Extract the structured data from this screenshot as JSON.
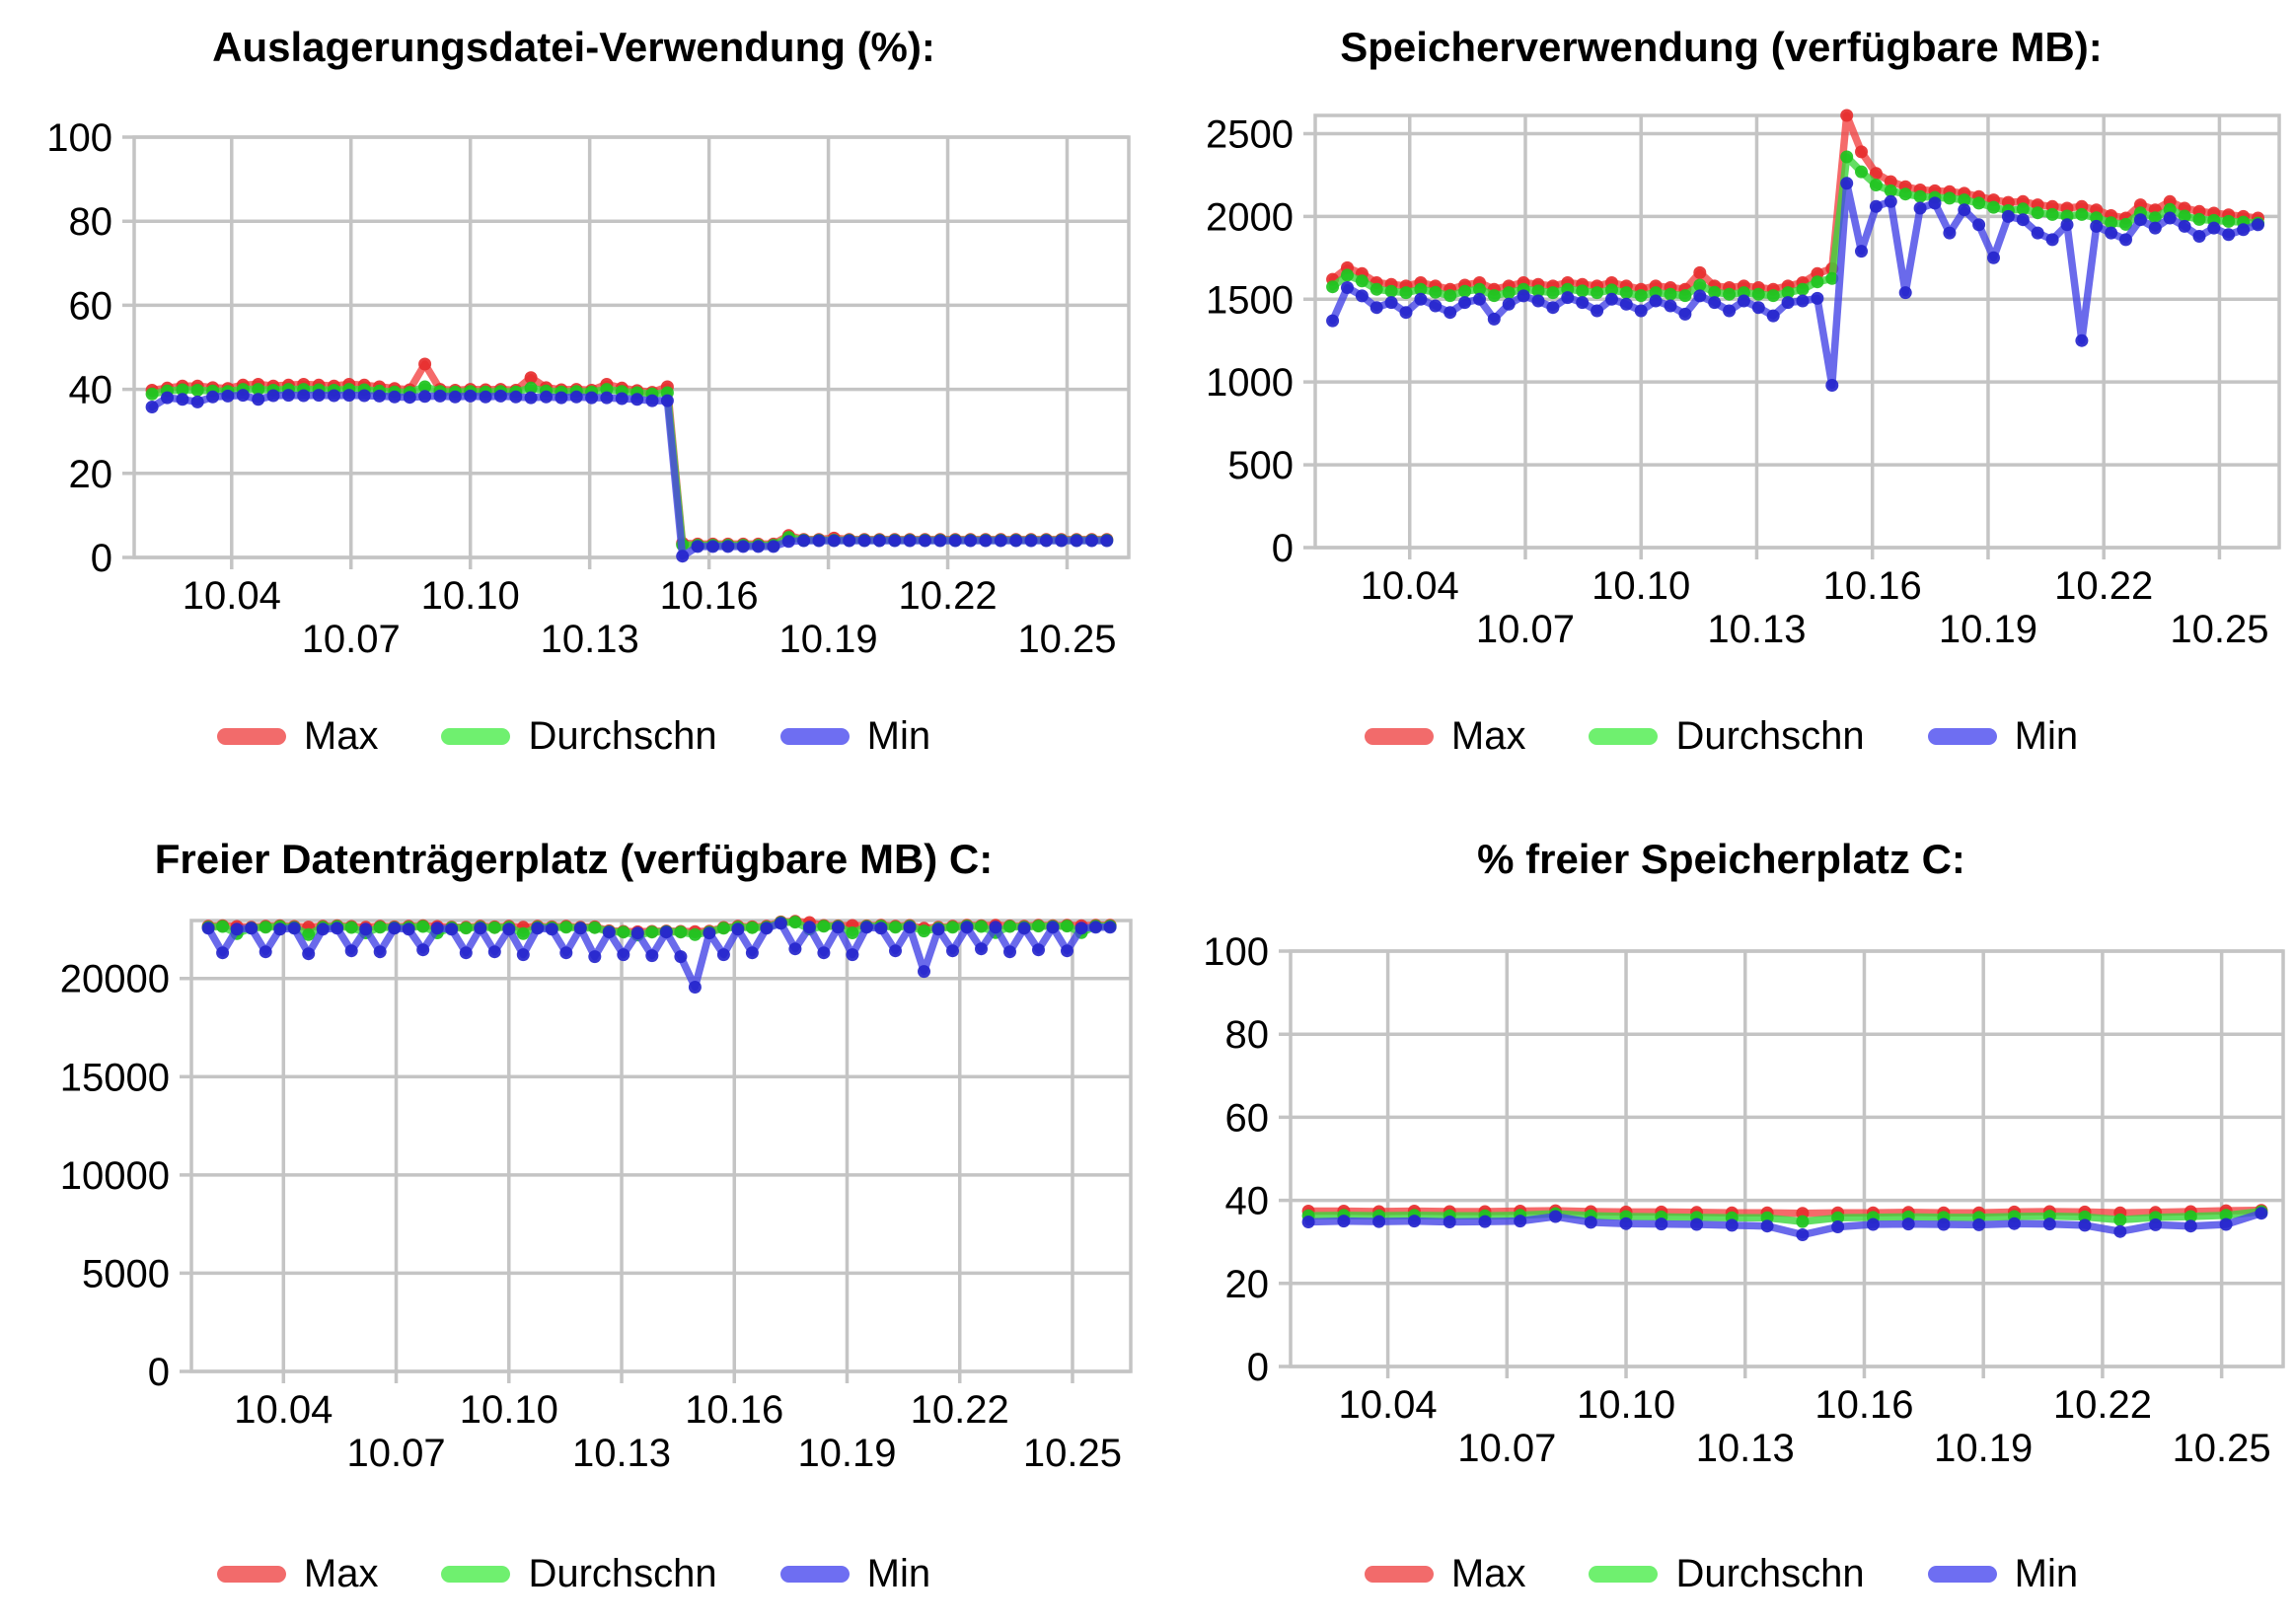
{
  "colors": {
    "max_line": "#F24545",
    "max_marker": "#E62E2E",
    "avg_line": "#3BD63B",
    "avg_marker": "#20C320",
    "min_line": "#4545E6",
    "min_marker": "#2525CC",
    "legend_max": "#F26B6B",
    "legend_avg": "#6FF06F",
    "legend_min": "#6E6EF2",
    "grid": "#C4C4C4",
    "text": "#000000",
    "background": "#FFFFFF"
  },
  "legend_labels": {
    "max": "Max",
    "avg": "Durchschn",
    "min": "Min"
  },
  "chart_data": [
    {
      "type": "line",
      "title": "Auslagerungsdatei-Verwendung (%):",
      "ylabel": "",
      "xlabel": "",
      "ylim": [
        0,
        100
      ],
      "y_ticks": [
        0,
        20,
        40,
        60,
        80,
        100
      ],
      "xlim": [
        10.0155,
        10.2655
      ],
      "x_start": 10.02,
      "x_end": 10.26,
      "x_ticks": [
        {
          "label": "10.04",
          "value": 10.04,
          "row": 1
        },
        {
          "label": "10.07",
          "value": 10.07,
          "row": 2
        },
        {
          "label": "10.10",
          "value": 10.1,
          "row": 1
        },
        {
          "label": "10.13",
          "value": 10.13,
          "row": 2
        },
        {
          "label": "10.16",
          "value": 10.16,
          "row": 1
        },
        {
          "label": "10.19",
          "value": 10.19,
          "row": 2
        },
        {
          "label": "10.22",
          "value": 10.22,
          "row": 1
        },
        {
          "label": "10.25",
          "value": 10.25,
          "row": 2
        }
      ],
      "grid": true,
      "legend_position": "bottom",
      "series": [
        {
          "name": "Max",
          "color_key": "max",
          "values": [
            39.8,
            40.3,
            40.8,
            40.8,
            40.4,
            40.2,
            41.0,
            41.2,
            40.8,
            41.0,
            41.2,
            41.0,
            40.8,
            41.2,
            41.0,
            40.6,
            40.2,
            39.9,
            46.0,
            40.0,
            39.8,
            40.0,
            39.9,
            40.0,
            39.8,
            42.8,
            40.4,
            39.9,
            40.0,
            39.8,
            41.2,
            40.3,
            39.7,
            39.3,
            40.6,
            3.4,
            3.2,
            3.2,
            3.2,
            3.2,
            3.2,
            3.2,
            5.2,
            4.3,
            4.3,
            4.6,
            4.3,
            4.3,
            4.3,
            4.3,
            4.3,
            4.3,
            4.3,
            4.3,
            4.3,
            4.3,
            4.3,
            4.3,
            4.3,
            4.3,
            4.3,
            4.3,
            4.3,
            4.3
          ]
        },
        {
          "name": "Durchschn",
          "color_key": "avg",
          "values": [
            38.9,
            39.6,
            39.9,
            39.8,
            39.6,
            39.5,
            40.0,
            40.0,
            39.8,
            40.0,
            40.0,
            39.9,
            39.8,
            40.0,
            39.9,
            39.6,
            39.4,
            39.3,
            40.6,
            39.5,
            39.4,
            39.5,
            39.4,
            39.5,
            39.4,
            40.3,
            39.6,
            39.4,
            39.5,
            39.4,
            40.0,
            39.5,
            39.2,
            38.9,
            39.2,
            3.0,
            2.9,
            2.9,
            2.9,
            2.9,
            2.9,
            2.9,
            4.8,
            4.1,
            4.1,
            4.1,
            4.1,
            4.1,
            4.1,
            4.1,
            4.1,
            4.1,
            4.1,
            4.1,
            4.1,
            4.1,
            4.1,
            4.1,
            4.1,
            4.1,
            4.1,
            4.1,
            4.1,
            4.1
          ]
        },
        {
          "name": "Min",
          "color_key": "min",
          "values": [
            35.8,
            38.0,
            37.6,
            37.0,
            38.2,
            38.4,
            38.6,
            37.6,
            38.5,
            38.6,
            38.5,
            38.6,
            38.5,
            38.6,
            38.5,
            38.4,
            38.2,
            38.1,
            38.3,
            38.4,
            38.2,
            38.4,
            38.2,
            38.4,
            38.2,
            38.0,
            38.2,
            38.0,
            38.2,
            38.0,
            38.0,
            37.8,
            37.6,
            37.3,
            37.3,
            0.3,
            2.6,
            2.6,
            2.6,
            2.6,
            2.6,
            2.6,
            3.8,
            4.0,
            4.0,
            4.0,
            4.0,
            4.0,
            4.0,
            4.0,
            4.0,
            4.0,
            4.0,
            4.0,
            4.0,
            4.0,
            4.0,
            4.0,
            4.0,
            4.0,
            4.0,
            4.0,
            4.0,
            4.0
          ]
        }
      ]
    },
    {
      "type": "line",
      "title": "Speicherverwendung (verfügbare MB):",
      "ylabel": "",
      "xlabel": "",
      "ylim": [
        0,
        2610
      ],
      "y_ticks": [
        0,
        500,
        1000,
        1500,
        2000,
        2500
      ],
      "xlim": [
        10.0155,
        10.2655
      ],
      "x_start": 10.02,
      "x_end": 10.26,
      "x_ticks": [
        {
          "label": "10.04",
          "value": 10.04,
          "row": 1
        },
        {
          "label": "10.07",
          "value": 10.07,
          "row": 2
        },
        {
          "label": "10.10",
          "value": 10.1,
          "row": 1
        },
        {
          "label": "10.13",
          "value": 10.13,
          "row": 2
        },
        {
          "label": "10.16",
          "value": 10.16,
          "row": 1
        },
        {
          "label": "10.19",
          "value": 10.19,
          "row": 2
        },
        {
          "label": "10.22",
          "value": 10.22,
          "row": 1
        },
        {
          "label": "10.25",
          "value": 10.25,
          "row": 2
        }
      ],
      "grid": true,
      "legend_position": "bottom",
      "series": [
        {
          "name": "Max",
          "color_key": "max",
          "values": [
            1620,
            1690,
            1655,
            1600,
            1590,
            1580,
            1600,
            1580,
            1560,
            1585,
            1600,
            1560,
            1580,
            1600,
            1590,
            1580,
            1600,
            1590,
            1580,
            1600,
            1580,
            1560,
            1580,
            1570,
            1560,
            1660,
            1580,
            1570,
            1580,
            1570,
            1560,
            1580,
            1600,
            1655,
            1685,
            2610,
            2390,
            2260,
            2210,
            2180,
            2160,
            2155,
            2150,
            2140,
            2120,
            2100,
            2085,
            2090,
            2070,
            2060,
            2050,
            2060,
            2040,
            2005,
            1990,
            2070,
            2040,
            2090,
            2050,
            2030,
            2020,
            2010,
            2000,
            1990
          ]
        },
        {
          "name": "Durchschn",
          "color_key": "avg",
          "values": [
            1575,
            1645,
            1610,
            1560,
            1548,
            1540,
            1560,
            1542,
            1522,
            1548,
            1560,
            1522,
            1540,
            1560,
            1550,
            1540,
            1560,
            1550,
            1540,
            1556,
            1540,
            1522,
            1540,
            1530,
            1522,
            1585,
            1542,
            1530,
            1540,
            1530,
            1522,
            1540,
            1560,
            1605,
            1625,
            2360,
            2270,
            2190,
            2155,
            2135,
            2120,
            2115,
            2110,
            2100,
            2080,
            2055,
            2035,
            2045,
            2022,
            2012,
            2002,
            2012,
            1992,
            1962,
            1952,
            2022,
            1992,
            2042,
            2002,
            1982,
            1976,
            1970,
            1966,
            1960
          ]
        },
        {
          "name": "Min",
          "color_key": "min",
          "values": [
            1370,
            1570,
            1520,
            1450,
            1480,
            1420,
            1500,
            1460,
            1420,
            1480,
            1500,
            1380,
            1470,
            1520,
            1490,
            1450,
            1510,
            1480,
            1430,
            1500,
            1470,
            1430,
            1490,
            1460,
            1410,
            1520,
            1480,
            1430,
            1490,
            1450,
            1400,
            1480,
            1490,
            1505,
            980,
            2200,
            1790,
            2060,
            2090,
            1540,
            2050,
            2080,
            1900,
            2040,
            1950,
            1750,
            2000,
            1980,
            1900,
            1860,
            1950,
            1250,
            1940,
            1900,
            1860,
            1980,
            1930,
            1990,
            1940,
            1880,
            1930,
            1890,
            1920,
            1950
          ]
        }
      ]
    },
    {
      "type": "line",
      "title": "Freier Datenträgerplatz (verfügbare MB) C:",
      "ylabel": "",
      "xlabel": "",
      "ylim": [
        0,
        22950
      ],
      "y_ticks": [
        0,
        5000,
        10000,
        15000,
        20000
      ],
      "xlim": [
        10.0155,
        10.2655
      ],
      "x_start": 10.02,
      "x_end": 10.26,
      "x_ticks": [
        {
          "label": "10.04",
          "value": 10.04,
          "row": 1
        },
        {
          "label": "10.07",
          "value": 10.07,
          "row": 2
        },
        {
          "label": "10.10",
          "value": 10.1,
          "row": 1
        },
        {
          "label": "10.13",
          "value": 10.13,
          "row": 2
        },
        {
          "label": "10.16",
          "value": 10.16,
          "row": 1
        },
        {
          "label": "10.19",
          "value": 10.19,
          "row": 2
        },
        {
          "label": "10.22",
          "value": 10.22,
          "row": 1
        },
        {
          "label": "10.25",
          "value": 10.25,
          "row": 2
        }
      ],
      "grid": true,
      "legend_position": "bottom",
      "series": [
        {
          "name": "Max",
          "color_key": "max",
          "values": [
            22660,
            22690,
            22650,
            22610,
            22660,
            22690,
            22650,
            22620,
            22660,
            22690,
            22650,
            22610,
            22660,
            22630,
            22660,
            22690,
            22650,
            22620,
            22610,
            22660,
            22630,
            22660,
            22610,
            22660,
            22630,
            22660,
            22610,
            22630,
            22430,
            22400,
            22380,
            22400,
            22420,
            22400,
            22390,
            22410,
            22600,
            22660,
            22630,
            22660,
            22880,
            22910,
            22850,
            22700,
            22680,
            22700,
            22680,
            22710,
            22660,
            22700,
            22560,
            22610,
            22660,
            22710,
            22690,
            22710,
            22680,
            22660,
            22710,
            22690,
            22710,
            22690,
            22710,
            22710
          ]
        },
        {
          "name": "Durchschn",
          "color_key": "avg",
          "values": [
            22610,
            22650,
            22280,
            22570,
            22610,
            22650,
            22600,
            22230,
            22610,
            22650,
            22600,
            22320,
            22610,
            22590,
            22610,
            22650,
            22320,
            22590,
            22570,
            22610,
            22590,
            22610,
            22280,
            22610,
            22590,
            22610,
            22570,
            22590,
            22390,
            22360,
            22210,
            22360,
            22390,
            22360,
            22230,
            22360,
            22560,
            22610,
            22590,
            22610,
            22850,
            22870,
            22520,
            22660,
            22650,
            22320,
            22650,
            22670,
            22610,
            22660,
            22420,
            22560,
            22610,
            22670,
            22650,
            22330,
            22650,
            22610,
            22670,
            22650,
            22670,
            22330,
            22670,
            22670
          ]
        },
        {
          "name": "Min",
          "color_key": "min",
          "values": [
            22560,
            21310,
            22510,
            22560,
            21360,
            22510,
            22560,
            21260,
            22510,
            22560,
            21410,
            22510,
            21360,
            22560,
            22510,
            21460,
            22560,
            22510,
            21310,
            22560,
            21360,
            22510,
            21210,
            22560,
            22510,
            21310,
            22560,
            21110,
            22360,
            21210,
            22310,
            21160,
            22360,
            21110,
            19560,
            22310,
            21210,
            22510,
            21310,
            22560,
            22810,
            21510,
            22610,
            21310,
            22610,
            21210,
            22610,
            22560,
            21410,
            22610,
            20360,
            22510,
            21410,
            22610,
            21510,
            22610,
            21360,
            22560,
            21460,
            22610,
            21410,
            22560,
            22610,
            22610
          ]
        }
      ]
    },
    {
      "type": "line",
      "title": "% freier Speicherplatz C:",
      "ylabel": "",
      "xlabel": "",
      "ylim": [
        0,
        100
      ],
      "y_ticks": [
        0,
        20,
        40,
        60,
        80,
        100
      ],
      "xlim": [
        10.0155,
        10.2655
      ],
      "x_start": 10.02,
      "x_end": 10.26,
      "x_ticks": [
        {
          "label": "10.04",
          "value": 10.04,
          "row": 1
        },
        {
          "label": "10.07",
          "value": 10.07,
          "row": 2
        },
        {
          "label": "10.10",
          "value": 10.1,
          "row": 1
        },
        {
          "label": "10.13",
          "value": 10.13,
          "row": 2
        },
        {
          "label": "10.16",
          "value": 10.16,
          "row": 1
        },
        {
          "label": "10.19",
          "value": 10.19,
          "row": 2
        },
        {
          "label": "10.22",
          "value": 10.22,
          "row": 1
        },
        {
          "label": "10.25",
          "value": 10.25,
          "row": 2
        }
      ],
      "grid": true,
      "legend_position": "bottom",
      "series": [
        {
          "name": "Max",
          "color_key": "max",
          "values": [
            37.4,
            37.4,
            37.3,
            37.4,
            37.3,
            37.3,
            37.4,
            37.5,
            37.3,
            37.2,
            37.2,
            37.1,
            37.0,
            37.0,
            36.9,
            37.0,
            37.0,
            37.1,
            37.0,
            37.0,
            37.2,
            37.3,
            37.2,
            37.0,
            37.1,
            37.3,
            37.5,
            37.6
          ]
        },
        {
          "name": "Durchschn",
          "color_key": "avg",
          "values": [
            36.3,
            36.4,
            36.3,
            36.4,
            36.3,
            36.3,
            36.4,
            36.8,
            36.3,
            36.1,
            36.0,
            35.9,
            35.8,
            35.8,
            34.9,
            35.8,
            35.9,
            36.0,
            35.9,
            35.9,
            36.1,
            36.2,
            36.0,
            35.3,
            35.9,
            36.1,
            36.4,
            37.3
          ]
        },
        {
          "name": "Min",
          "color_key": "min",
          "values": [
            34.8,
            35.0,
            34.9,
            35.0,
            34.8,
            34.9,
            35.0,
            36.1,
            34.7,
            34.4,
            34.3,
            34.2,
            34.0,
            33.8,
            31.7,
            33.6,
            34.2,
            34.3,
            34.2,
            34.1,
            34.4,
            34.3,
            34.0,
            32.5,
            34.1,
            33.8,
            34.2,
            36.9
          ]
        }
      ]
    }
  ]
}
